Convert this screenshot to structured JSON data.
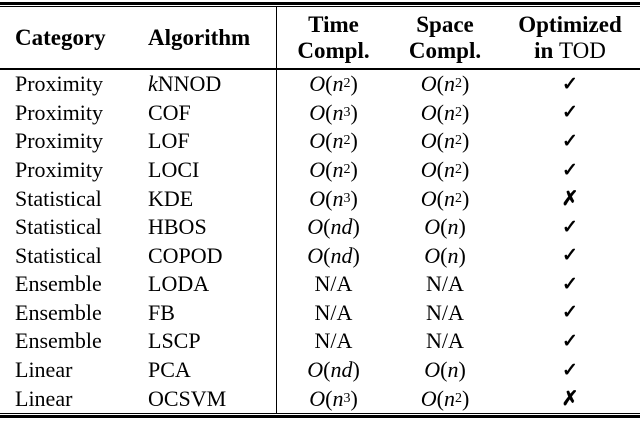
{
  "header": {
    "category": "Category",
    "algorithm": "Algorithm",
    "time_line1": "Time",
    "time_line2": "Compl.",
    "space_line1": "Space",
    "space_line2": "Compl.",
    "optimized_line1": "Optimized",
    "optimized_line2_bold": "in",
    "optimized_line2_regular": "TOD"
  },
  "symbols": {
    "check": "✓",
    "cross": "✗"
  },
  "rows": [
    {
      "category": "Proximity",
      "alg_italic": "k",
      "alg": "NNOD",
      "time": "O(n^2)",
      "space": "O(n^2)",
      "tod": "check"
    },
    {
      "category": "Proximity",
      "alg_italic": "",
      "alg": "COF",
      "time": "O(n^3)",
      "space": "O(n^2)",
      "tod": "check"
    },
    {
      "category": "Proximity",
      "alg_italic": "",
      "alg": "LOF",
      "time": "O(n^2)",
      "space": "O(n^2)",
      "tod": "check"
    },
    {
      "category": "Proximity",
      "alg_italic": "",
      "alg": "LOCI",
      "time": "O(n^2)",
      "space": "O(n^2)",
      "tod": "check"
    },
    {
      "category": "Statistical",
      "alg_italic": "",
      "alg": "KDE",
      "time": "O(n^3)",
      "space": "O(n^2)",
      "tod": "cross"
    },
    {
      "category": "Statistical",
      "alg_italic": "",
      "alg": "HBOS",
      "time": "O(nd)",
      "space": "O(n)",
      "tod": "check"
    },
    {
      "category": "Statistical",
      "alg_italic": "",
      "alg": "COPOD",
      "time": "O(nd)",
      "space": "O(n)",
      "tod": "check"
    },
    {
      "category": "Ensemble",
      "alg_italic": "",
      "alg": "LODA",
      "time": "N/A",
      "space": "N/A",
      "tod": "check"
    },
    {
      "category": "Ensemble",
      "alg_italic": "",
      "alg": "FB",
      "time": "N/A",
      "space": "N/A",
      "tod": "check"
    },
    {
      "category": "Ensemble",
      "alg_italic": "",
      "alg": "LSCP",
      "time": "N/A",
      "space": "N/A",
      "tod": "check"
    },
    {
      "category": "Linear",
      "alg_italic": "",
      "alg": "PCA",
      "time": "O(nd)",
      "space": "O(n)",
      "tod": "check"
    },
    {
      "category": "Linear",
      "alg_italic": "",
      "alg": "OCSVM",
      "time": "O(n^3)",
      "space": "O(n^2)",
      "tod": "cross"
    }
  ]
}
